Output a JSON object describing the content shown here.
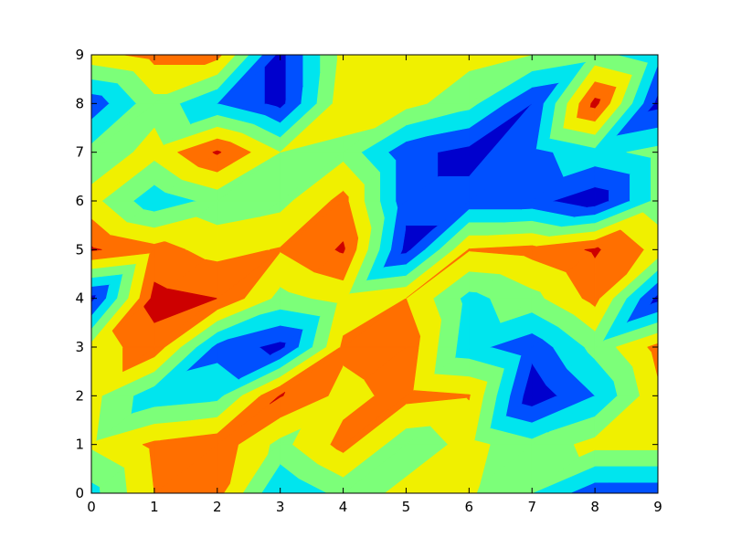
{
  "chart_data": {
    "type": "contourf",
    "x": [
      0,
      1,
      2,
      3,
      4,
      5,
      6,
      7,
      8,
      9
    ],
    "y": [
      0,
      1,
      2,
      3,
      4,
      5,
      6,
      7,
      8,
      9
    ],
    "z": [
      [
        0.4,
        0.75,
        0.8,
        0.3,
        0.5,
        0.65,
        0.62,
        0.45,
        0.2,
        0.2
      ],
      [
        0.62,
        0.78,
        0.85,
        0.55,
        0.8,
        0.5,
        0.65,
        0.5,
        0.65,
        0.65
      ],
      [
        0.65,
        0.35,
        0.4,
        0.91,
        0.7,
        0.8,
        0.76,
        0.05,
        0.3,
        0.72
      ],
      [
        0.65,
        0.85,
        0.25,
        0.1,
        0.78,
        0.85,
        0.35,
        0.2,
        0.5,
        0.8
      ],
      [
        0.1,
        0.95,
        0.9,
        0.55,
        0.65,
        0.75,
        0.4,
        0.55,
        0.8,
        0.1
      ],
      [
        0.92,
        0.8,
        0.7,
        0.76,
        0.92,
        0.1,
        0.76,
        0.8,
        0.92,
        0.7
      ],
      [
        0.65,
        0.35,
        0.5,
        0.55,
        0.8,
        0.2,
        0.2,
        0.2,
        0.05,
        0.5
      ],
      [
        0.5,
        0.65,
        0.92,
        0.6,
        0.55,
        0.2,
        0.1,
        0.25,
        0.4,
        0.5
      ],
      [
        0.2,
        0.55,
        0.3,
        0.1,
        0.7,
        0.65,
        0.5,
        0.15,
        0.95,
        0.1
      ],
      [
        0.7,
        0.8,
        0.8,
        0.1,
        0.65,
        0.6,
        0.65,
        0.6,
        0.5,
        0.35
      ]
    ],
    "levels": [
      0,
      0.15,
      0.3,
      0.45,
      0.6,
      0.75,
      0.9,
      1.05
    ],
    "colors": [
      "#0000cd",
      "#0050ff",
      "#00e5ee",
      "#7cff79",
      "#f0f000",
      "#ff6f00",
      "#cd0000"
    ],
    "xlim": [
      0,
      9
    ],
    "ylim": [
      0,
      9
    ],
    "xticks": [
      0,
      1,
      2,
      3,
      4,
      5,
      6,
      7,
      8,
      9
    ],
    "yticks": [
      0,
      1,
      2,
      3,
      4,
      5,
      6,
      7,
      8,
      9
    ]
  }
}
